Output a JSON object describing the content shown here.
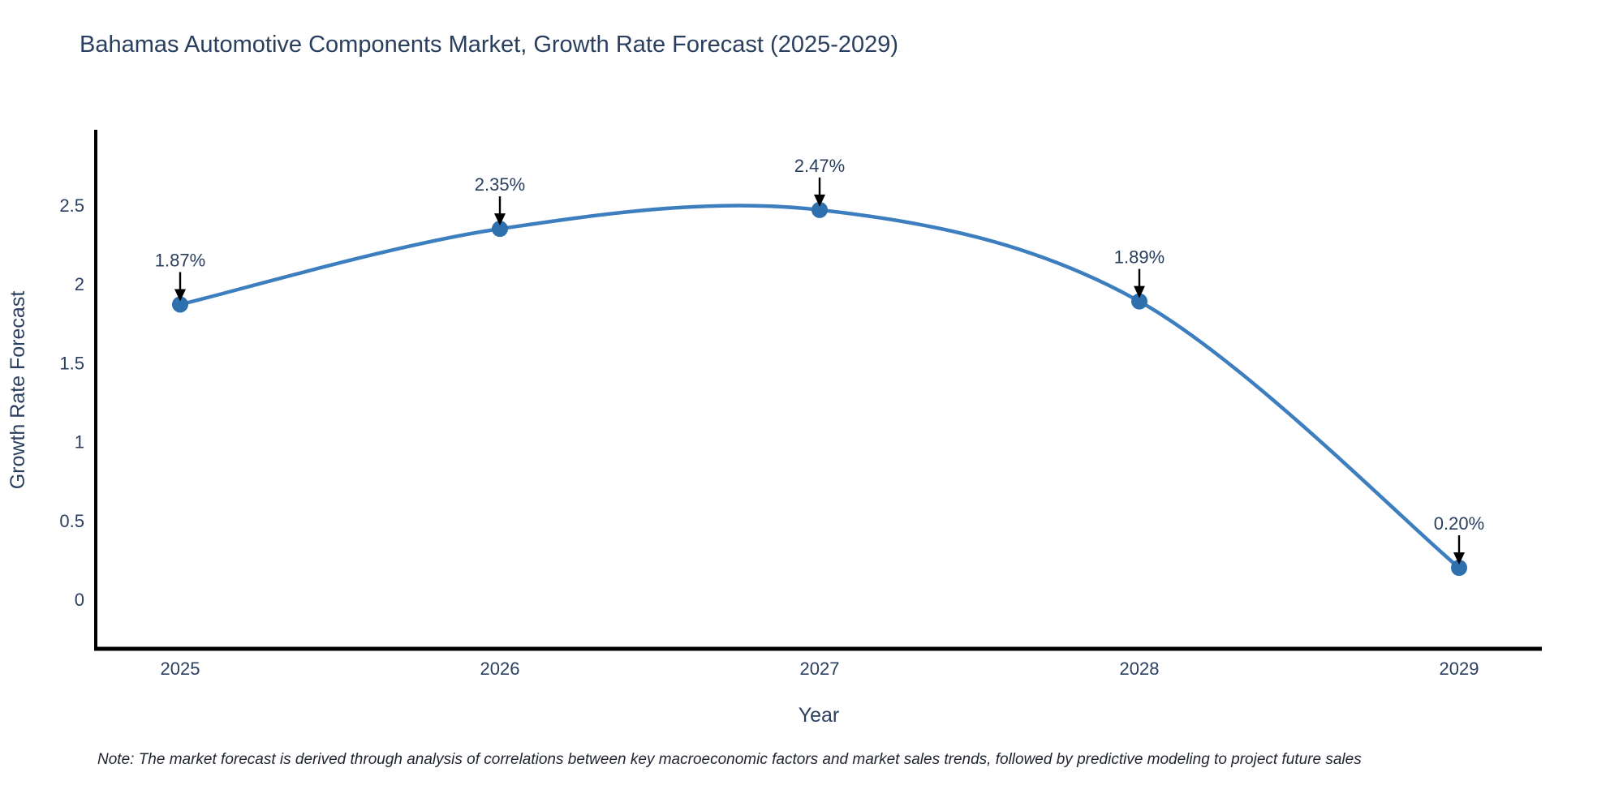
{
  "note": "Note: The market forecast is derived through analysis of correlations between key macroeconomic factors and market sales trends, followed by predictive modeling to project future sales",
  "chart_data": {
    "type": "line",
    "title": "Bahamas Automotive Components Market, Growth Rate Forecast (2025-2029)",
    "xlabel": "Year",
    "ylabel": "Growth Rate Forecast",
    "x": [
      "2025",
      "2026",
      "2027",
      "2028",
      "2029"
    ],
    "values": [
      1.87,
      2.35,
      2.47,
      1.89,
      0.2
    ],
    "value_labels": [
      "1.87%",
      "2.35%",
      "2.47%",
      "1.89%",
      "0.20%"
    ],
    "yticks": [
      0,
      0.5,
      1,
      1.5,
      2,
      2.5
    ],
    "ylim": [
      -0.33,
      2.95
    ],
    "line_shape": "spline",
    "grid": false,
    "legend": "none",
    "colors": {
      "line": "#3d7ebf",
      "marker": "#2e6fae",
      "axis": "#000000",
      "text": "#2a3f5f",
      "annotation_arrow": "#000000"
    }
  }
}
